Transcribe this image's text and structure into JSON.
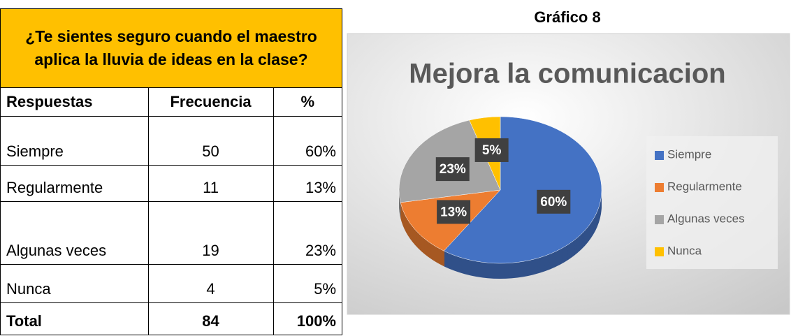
{
  "table": {
    "title": "¿Te sientes seguro cuando el maestro aplica la lluvia de ideas en la clase?",
    "headers": [
      "Respuestas",
      "Frecuencia",
      "%"
    ],
    "rows": [
      [
        "Siempre",
        "50",
        "60%"
      ],
      [
        "Regularmente",
        "11",
        "13%"
      ],
      [
        "Algunas veces",
        "19",
        "23%"
      ],
      [
        "Nunca",
        "4",
        "5%"
      ]
    ],
    "total": [
      "Total",
      "84",
      "100%"
    ]
  },
  "chart_data": {
    "type": "pie",
    "caption": "Gráfico 8",
    "title": "Mejora la comunicacion",
    "categories": [
      "Siempre",
      "Regularmente",
      "Algunas veces",
      "Nunca"
    ],
    "values": [
      60,
      13,
      23,
      5
    ],
    "value_labels": [
      "60%",
      "13%",
      "23%",
      "5%"
    ],
    "colors": [
      "#4472c4",
      "#ed7d31",
      "#a5a5a5",
      "#ffc000"
    ],
    "legend": "right"
  }
}
